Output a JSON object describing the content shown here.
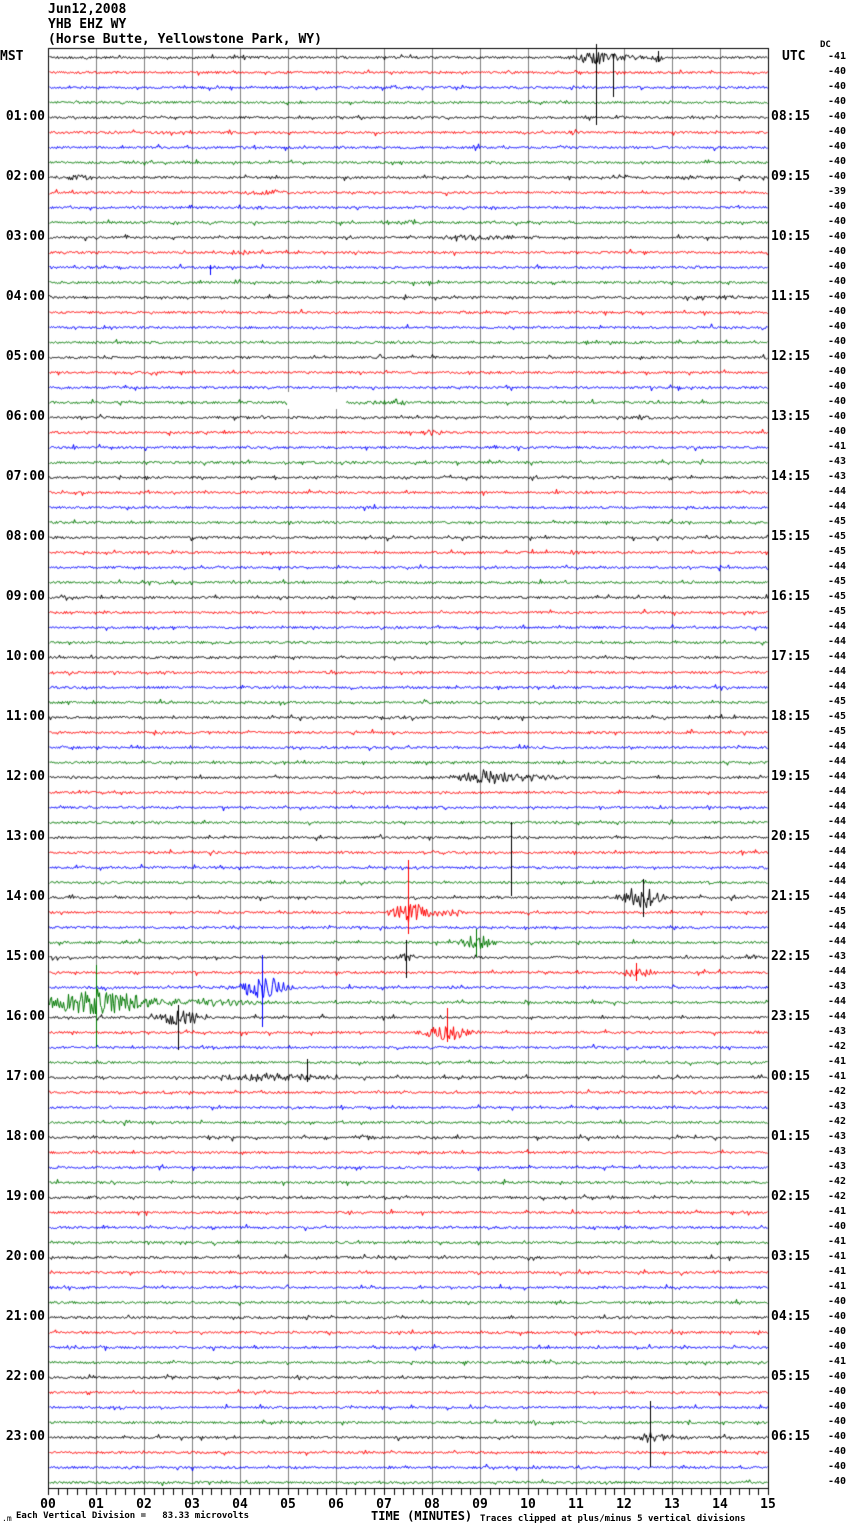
{
  "chart_data": {
    "type": "line",
    "subtype": "helicorder-seismogram",
    "title_date": "Jun12,2008",
    "station": "YHB EHZ WY",
    "location": "(Horse Butte, Yellowstone Park, WY)",
    "left_axis_label": "MST",
    "right_axis_label": "UTC",
    "dc_header": "DC",
    "xlabel": "TIME (MINUTES)",
    "x_ticks": [
      "00",
      "01",
      "02",
      "03",
      "04",
      "05",
      "06",
      "07",
      "08",
      "09",
      "10",
      "11",
      "12",
      "13",
      "14",
      "15"
    ],
    "x_range_minutes": [
      0,
      15
    ],
    "rows": 96,
    "minutes_per_row": 15,
    "trace_color_cycle": [
      "#000000",
      "#ff0000",
      "#0000ff",
      "#007800"
    ],
    "grid_color": "#7f7f7f",
    "background_color": "#ffffff",
    "left_tick_labels": [
      "01:00",
      "02:00",
      "03:00",
      "04:00",
      "05:00",
      "06:00",
      "07:00",
      "08:00",
      "09:00",
      "10:00",
      "11:00",
      "12:00",
      "13:00",
      "14:00",
      "15:00",
      "16:00",
      "17:00",
      "18:00",
      "19:00",
      "20:00",
      "21:00",
      "22:00",
      "23:00"
    ],
    "right_tick_labels": [
      "08:15",
      "09:15",
      "10:15",
      "11:15",
      "12:15",
      "13:15",
      "14:15",
      "15:15",
      "16:15",
      "17:15",
      "18:15",
      "19:15",
      "20:15",
      "21:15",
      "22:15",
      "23:15",
      "00:15",
      "01:15",
      "02:15",
      "03:15",
      "04:15",
      "05:15",
      "06:15"
    ],
    "dc_values": [
      -41,
      -40,
      -40,
      -40,
      -40,
      -40,
      -40,
      -40,
      -40,
      -39,
      -40,
      -40,
      -40,
      -40,
      -40,
      -40,
      -40,
      -40,
      -40,
      -40,
      -40,
      -40,
      -40,
      -40,
      -40,
      -40,
      -41,
      -43,
      -43,
      -44,
      -44,
      -45,
      -45,
      -45,
      -44,
      -45,
      -45,
      -45,
      -44,
      -44,
      -44,
      -44,
      -44,
      -45,
      -45,
      -45,
      -44,
      -44,
      -44,
      -44,
      -44,
      -44,
      -44,
      -44,
      -44,
      -44,
      -44,
      -45,
      -44,
      -44,
      -43,
      -44,
      -43,
      -44,
      -44,
      -43,
      -42,
      -41,
      -41,
      -42,
      -43,
      -42,
      -43,
      -43,
      -43,
      -42,
      -42,
      -41,
      -40,
      -41,
      -41,
      -41,
      -41,
      -40,
      -40,
      -40,
      -40,
      -41,
      -40,
      -40,
      -40,
      -40,
      -40,
      -40,
      -40,
      -40
    ],
    "events": [
      {
        "row": 1,
        "min": 11.42,
        "dur": 0.85,
        "amp": 7,
        "up": 13,
        "down": 68
      },
      {
        "row": 1,
        "min": 11.77,
        "dur": 0.15,
        "amp": 2,
        "up": 3,
        "down": 40
      },
      {
        "row": 1,
        "min": 12.3,
        "dur": 0.9,
        "amp": 2
      },
      {
        "row": 1,
        "min": 12.71,
        "dur": 0.2,
        "amp": 4,
        "up": 6,
        "down": 5
      },
      {
        "row": 9,
        "min": 0.56,
        "dur": 0.8,
        "amp": 2.2
      },
      {
        "row": 9,
        "min": 13.2,
        "dur": 0.9,
        "amp": 1.8
      },
      {
        "row": 10,
        "min": 4.5,
        "dur": 1.2,
        "amp": 2.2
      },
      {
        "row": 11,
        "min": 1.85,
        "dur": 0.3,
        "amp": 1.8
      },
      {
        "row": 11,
        "min": 4.35,
        "dur": 0.5,
        "amp": 1.8
      },
      {
        "row": 12,
        "min": 7.35,
        "dur": 1.0,
        "amp": 1.8
      },
      {
        "row": 13,
        "min": 9.0,
        "dur": 1.9,
        "amp": 2.2
      },
      {
        "row": 14,
        "min": 4.1,
        "dur": 0.9,
        "amp": 2.2
      },
      {
        "row": 15,
        "min": 3.38,
        "dur": 0.12,
        "amp": 1,
        "up": 2,
        "down": 8
      },
      {
        "row": 17,
        "min": 13.9,
        "dur": 1.4,
        "amp": 2.2
      },
      {
        "row": 24,
        "min": 7.1,
        "dur": 1.6,
        "amp": 1.8
      },
      {
        "row": 25,
        "min": 12.3,
        "dur": 1.5,
        "amp": 1.8
      },
      {
        "row": 26,
        "min": 8.06,
        "dur": 0.6,
        "amp": 2.5
      },
      {
        "row": 28,
        "min": 6.2,
        "dur": 0.3,
        "amp": 2.2
      },
      {
        "row": 49,
        "min": 9.1,
        "dur": 1.3,
        "amp": 7
      },
      {
        "row": 49,
        "min": 10.2,
        "dur": 1.0,
        "amp": 3
      },
      {
        "row": 53,
        "min": 9.65,
        "dur": 0.12,
        "amp": 2,
        "up": 15,
        "down": 59
      },
      {
        "row": 55,
        "min": 10.25,
        "dur": 0.2,
        "amp": 2.5
      },
      {
        "row": 57,
        "min": 12.4,
        "dur": 0.9,
        "amp": 11,
        "up": 18,
        "down": 20
      },
      {
        "row": 58,
        "min": 7.5,
        "dur": 0.7,
        "amp": 10,
        "up": 52,
        "down": 22
      },
      {
        "row": 58,
        "min": 8.2,
        "dur": 1.2,
        "amp": 3
      },
      {
        "row": 60,
        "min": 8.92,
        "dur": 0.6,
        "amp": 9,
        "up": 13,
        "down": 15
      },
      {
        "row": 61,
        "min": 7.46,
        "dur": 0.35,
        "amp": 5,
        "up": 17,
        "down": 21
      },
      {
        "row": 61,
        "min": 14.67,
        "dur": 0.35,
        "amp": 4
      },
      {
        "row": 62,
        "min": 12.25,
        "dur": 0.7,
        "amp": 5,
        "up": 9,
        "down": 9
      },
      {
        "row": 63,
        "min": 4.46,
        "dur": 1.0,
        "amp": 11,
        "up": 32,
        "down": 40
      },
      {
        "row": 64,
        "min": 1.0,
        "dur": 2.0,
        "amp": 13,
        "up": 37,
        "down": 45
      },
      {
        "row": 64,
        "min": 3.3,
        "dur": 2.6,
        "amp": 3.5
      },
      {
        "row": 65,
        "min": 2.71,
        "dur": 0.8,
        "amp": 9,
        "up": 12,
        "down": 33
      },
      {
        "row": 66,
        "min": 8.31,
        "dur": 0.9,
        "amp": 9,
        "up": 24,
        "down": 10
      },
      {
        "row": 69,
        "min": 4.7,
        "dur": 2.2,
        "amp": 4
      },
      {
        "row": 69,
        "min": 5.4,
        "dur": 0.12,
        "amp": 2,
        "up": 18,
        "down": 5
      },
      {
        "row": 73,
        "min": 3.48,
        "dur": 0.6,
        "amp": 2.2
      },
      {
        "row": 73,
        "min": 6.6,
        "dur": 0.5,
        "amp": 2.2
      },
      {
        "row": 93,
        "min": 12.54,
        "dur": 0.5,
        "amp": 5,
        "up": 36,
        "down": 30
      },
      {
        "row": 93,
        "min": 13.1,
        "dur": 0.9,
        "amp": 2.5
      }
    ],
    "gap": {
      "row": 24,
      "min_start": 4.98,
      "min_end": 6.21
    },
    "footer": {
      "prefix": ".m",
      "vertical_division": "Each Vertical Division =   83.33 microvolts",
      "clipping": "Traces clipped at plus/minus 5 vertical divisions"
    }
  }
}
